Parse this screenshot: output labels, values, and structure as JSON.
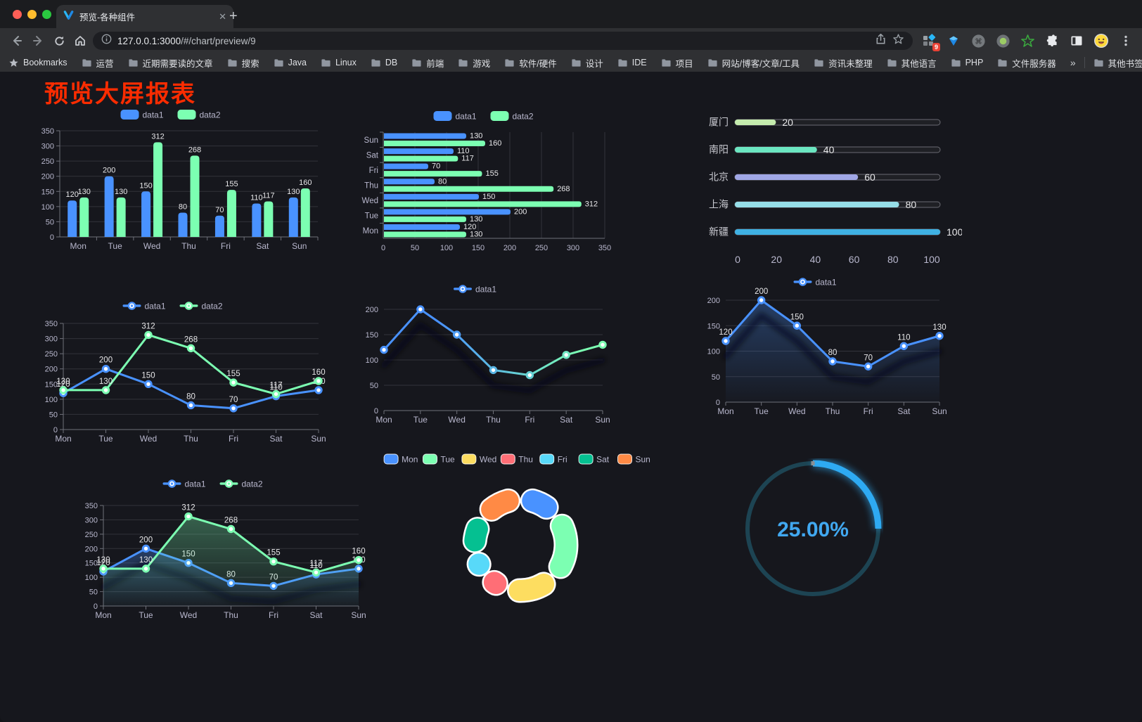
{
  "browser": {
    "tab_title": "预览-各种组件",
    "url_host": "127.0.0.1:3000",
    "url_path": "/#/chart/preview/9",
    "bookmarks_bar_label": "Bookmarks",
    "bookmarks": [
      "运营",
      "近期需要读的文章",
      "搜索",
      "Java",
      "Linux",
      "DB",
      "前端",
      "游戏",
      "软件/硬件",
      "设计",
      "IDE",
      "项目",
      "网站/博客/文章/工具",
      "资讯未整理",
      "其他语言",
      "PHP",
      "文件服务器"
    ],
    "overflow": "»",
    "other_bookmarks": "其他书签",
    "extension_badge": "9"
  },
  "page": {
    "title": "预览大屏报表"
  },
  "colors": {
    "data1": "#4992ff",
    "data2": "#7cffb2",
    "title_red": "#fb2c01",
    "gauge_blue": "#2eaaf2"
  },
  "chart_data": [
    {
      "id": "bar-vertical",
      "type": "bar",
      "categories": [
        "Mon",
        "Tue",
        "Wed",
        "Thu",
        "Fri",
        "Sat",
        "Sun"
      ],
      "series": [
        {
          "name": "data1",
          "color": "#4992ff",
          "values": [
            120,
            200,
            150,
            80,
            70,
            110,
            130
          ]
        },
        {
          "name": "data2",
          "color": "#7cffb2",
          "values": [
            130,
            130,
            312,
            268,
            155,
            117,
            160
          ]
        }
      ],
      "ylim": [
        0,
        350
      ],
      "ystep": 50,
      "labels": true,
      "legend": true
    },
    {
      "id": "bar-horizontal",
      "type": "hbar",
      "categories": [
        "Mon",
        "Tue",
        "Wed",
        "Thu",
        "Fri",
        "Sat",
        "Sun"
      ],
      "series": [
        {
          "name": "data1",
          "color": "#4992ff",
          "values": [
            120,
            200,
            150,
            80,
            70,
            110,
            130
          ]
        },
        {
          "name": "data2",
          "color": "#7cffb2",
          "values": [
            130,
            130,
            312,
            268,
            155,
            117,
            160
          ]
        }
      ],
      "xlim": [
        0,
        350
      ],
      "xstep": 50,
      "labels": true,
      "legend": true
    },
    {
      "id": "progress-bars",
      "type": "progress",
      "max": 100,
      "xticks": [
        0,
        20,
        40,
        60,
        80,
        100
      ],
      "items": [
        {
          "label": "厦门",
          "value": 20,
          "color": "#c4ebad"
        },
        {
          "label": "南阳",
          "value": 40,
          "color": "#6be6c1"
        },
        {
          "label": "北京",
          "value": 60,
          "color": "#a0a7e6"
        },
        {
          "label": "上海",
          "value": 80,
          "color": "#96dee8"
        },
        {
          "label": "新疆",
          "value": 100,
          "color": "#3fb1e3"
        }
      ]
    },
    {
      "id": "line-basic",
      "type": "line",
      "categories": [
        "Mon",
        "Tue",
        "Wed",
        "Thu",
        "Fri",
        "Sat",
        "Sun"
      ],
      "series": [
        {
          "name": "data1",
          "color": "#4992ff",
          "values": [
            120,
            200,
            150,
            80,
            70,
            110,
            130
          ]
        },
        {
          "name": "data2",
          "color": "#7cffb2",
          "values": [
            130,
            130,
            312,
            268,
            155,
            117,
            160
          ]
        }
      ],
      "ylim": [
        0,
        350
      ],
      "ystep": 50,
      "labels": true,
      "legend": true,
      "yaxis_line": true
    },
    {
      "id": "line-gradient",
      "type": "line",
      "categories": [
        "Mon",
        "Tue",
        "Wed",
        "Thu",
        "Fri",
        "Sat",
        "Sun"
      ],
      "series": [
        {
          "name": "data1",
          "color": "#4992ff",
          "color2": "#7cffb2",
          "gradient": true,
          "shadow": true,
          "values": [
            120,
            200,
            150,
            80,
            70,
            110,
            130
          ]
        }
      ],
      "ylim": [
        0,
        200
      ],
      "ystep": 50,
      "labels": false,
      "legend": true,
      "yaxis_line": false
    },
    {
      "id": "area-single",
      "type": "line",
      "categories": [
        "Mon",
        "Tue",
        "Wed",
        "Thu",
        "Fri",
        "Sat",
        "Sun"
      ],
      "series": [
        {
          "name": "data1",
          "color": "#4992ff",
          "area": true,
          "shadow": true,
          "values": [
            120,
            200,
            150,
            80,
            70,
            110,
            130
          ]
        }
      ],
      "ylim": [
        0,
        200
      ],
      "ystep": 50,
      "labels": true,
      "legend": true,
      "yaxis_line": false
    },
    {
      "id": "area-double",
      "type": "line",
      "categories": [
        "Mon",
        "Tue",
        "Wed",
        "Thu",
        "Fri",
        "Sat",
        "Sun"
      ],
      "series": [
        {
          "name": "data1",
          "color": "#4992ff",
          "area": true,
          "shadow": true,
          "values": [
            120,
            200,
            150,
            80,
            70,
            110,
            130
          ]
        },
        {
          "name": "data2",
          "color": "#7cffb2",
          "area": true,
          "values": [
            130,
            130,
            312,
            268,
            155,
            117,
            160
          ]
        }
      ],
      "ylim": [
        0,
        350
      ],
      "ystep": 50,
      "labels": true,
      "legend": true,
      "yaxis_line": true
    },
    {
      "id": "donut",
      "type": "pie",
      "categories": [
        "Mon",
        "Tue",
        "Wed",
        "Thu",
        "Fri",
        "Sat",
        "Sun"
      ],
      "values": [
        120,
        200,
        150,
        80,
        70,
        110,
        130
      ],
      "colors": [
        "#4992ff",
        "#7cffb2",
        "#fddd60",
        "#ff6e76",
        "#58d9f9",
        "#05c091",
        "#ff8a45"
      ],
      "inner_radius": 50,
      "outer_radius": 80,
      "legend": true
    },
    {
      "id": "gauge",
      "type": "gauge",
      "value": 25,
      "text": "25.00%",
      "color": "#2eaaf2",
      "track_color": "#1d4453",
      "text_color": "#41a8f0"
    }
  ]
}
